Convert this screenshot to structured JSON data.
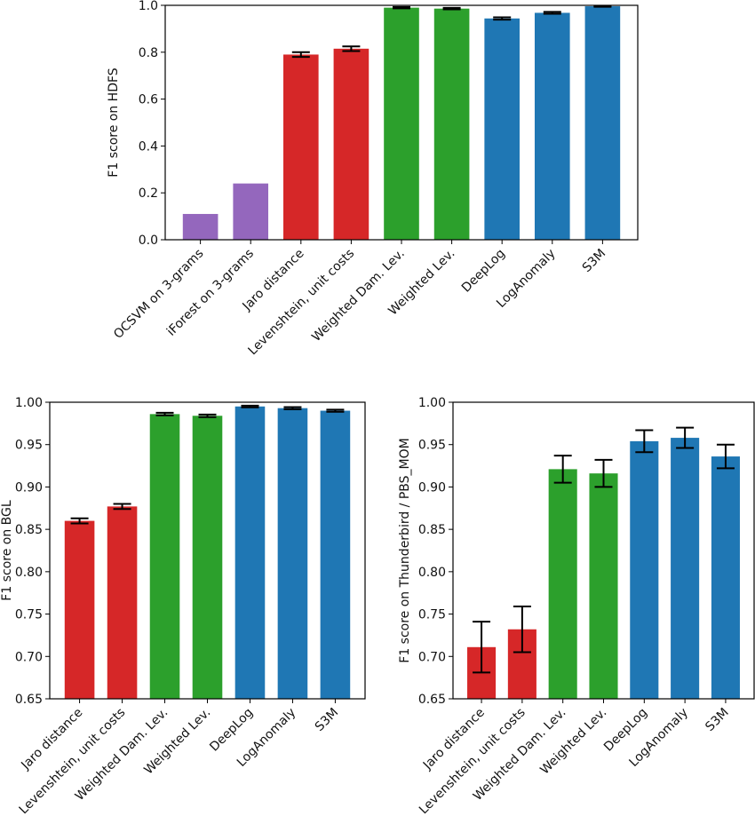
{
  "chart_data": [
    {
      "type": "bar",
      "ylabel": "F1 score on HDFS",
      "ylim": [
        0,
        1.0
      ],
      "yticks": [
        "0.0",
        "0.2",
        "0.4",
        "0.6",
        "0.8",
        "1.0"
      ],
      "grid": false,
      "categories": [
        "OCSVM on 3-grams",
        "iForest on 3-grams",
        "Jaro distance",
        "Levenshtein, unit costs",
        "Weighted Dam. Lev.",
        "Weighted Lev.",
        "DeepLog",
        "LogAnomaly",
        "S3M"
      ],
      "values": [
        0.11,
        0.24,
        0.79,
        0.815,
        0.99,
        0.986,
        0.944,
        0.968,
        0.996
      ],
      "errors": [
        null,
        null,
        0.01,
        0.01,
        0.003,
        0.003,
        0.005,
        0.004,
        0.002
      ],
      "colors": [
        "#9467bd",
        "#9467bd",
        "#d62728",
        "#d62728",
        "#2ca02c",
        "#2ca02c",
        "#1f77b4",
        "#1f77b4",
        "#1f77b4"
      ]
    },
    {
      "type": "bar",
      "ylabel": "F1 score on BGL",
      "ylim": [
        0.65,
        1.0
      ],
      "yticks": [
        "0.65",
        "0.70",
        "0.75",
        "0.80",
        "0.85",
        "0.90",
        "0.95",
        "1.00"
      ],
      "grid": false,
      "categories": [
        "Jaro distance",
        "Levenshtein, unit costs",
        "Weighted Dam. Lev.",
        "Weighted Lev.",
        "DeepLog",
        "LogAnomaly",
        "S3M"
      ],
      "values": [
        0.86,
        0.877,
        0.986,
        0.984,
        0.995,
        0.993,
        0.99
      ],
      "errors": [
        0.003,
        0.003,
        0.0015,
        0.0015,
        0.001,
        0.0012,
        0.0012
      ],
      "colors": [
        "#d62728",
        "#d62728",
        "#2ca02c",
        "#2ca02c",
        "#1f77b4",
        "#1f77b4",
        "#1f77b4"
      ]
    },
    {
      "type": "bar",
      "ylabel": "F1 score on Thunderbird / PBS_MOM",
      "ylim": [
        0.65,
        1.0
      ],
      "yticks": [
        "0.65",
        "0.70",
        "0.75",
        "0.80",
        "0.85",
        "0.90",
        "0.95",
        "1.00"
      ],
      "grid": false,
      "categories": [
        "Jaro distance",
        "Levenshtein, unit costs",
        "Weighted Dam. Lev.",
        "Weighted Lev.",
        "DeepLog",
        "LogAnomaly",
        "S3M"
      ],
      "values": [
        0.711,
        0.732,
        0.921,
        0.916,
        0.954,
        0.958,
        0.936
      ],
      "errors": [
        0.03,
        0.027,
        0.016,
        0.016,
        0.013,
        0.012,
        0.014
      ],
      "colors": [
        "#d62728",
        "#d62728",
        "#2ca02c",
        "#2ca02c",
        "#1f77b4",
        "#1f77b4",
        "#1f77b4"
      ]
    }
  ]
}
